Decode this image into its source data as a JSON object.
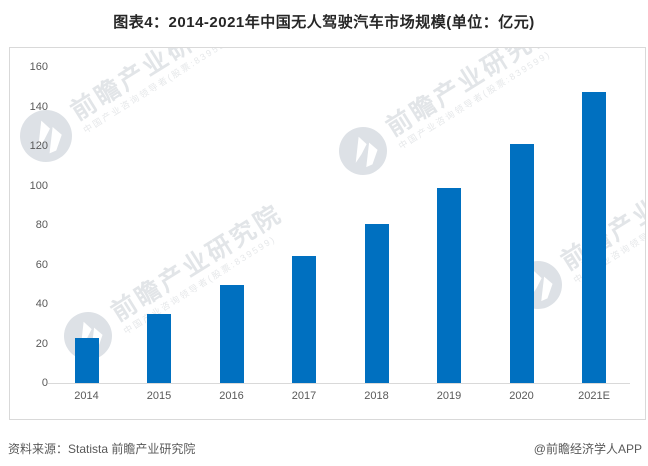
{
  "title": "图表4：2014-2021年中国无人驾驶汽车市场规模(单位：亿元)",
  "chart_data": {
    "type": "bar",
    "title": "图表4：2014-2021年中国无人驾驶汽车市场规模(单位：亿元)",
    "unit": "亿元",
    "categories": [
      "2014",
      "2015",
      "2016",
      "2017",
      "2018",
      "2019",
      "2020",
      "2021E"
    ],
    "values": [
      23,
      35,
      49.5,
      64.5,
      80.5,
      98.5,
      121,
      147.5
    ],
    "xlabel": "",
    "ylabel": "",
    "ylim": [
      0,
      160
    ],
    "yticks": [
      0,
      20,
      40,
      60,
      80,
      100,
      120,
      140,
      160
    ],
    "grid": false,
    "legend": false,
    "bar_color": "#0070C0"
  },
  "watermark": {
    "text_large": "前瞻产业研究院",
    "text_small": "中国产业咨询领导者(股票:839599)"
  },
  "footer": {
    "source": "资料来源：Statista 前瞻产业研究院",
    "credit": "@前瞻经济学人APP"
  },
  "colors": {
    "bar": "#0070C0",
    "axis_text": "#595959",
    "frame_border": "#D9D9D9",
    "title_text": "#262626"
  }
}
